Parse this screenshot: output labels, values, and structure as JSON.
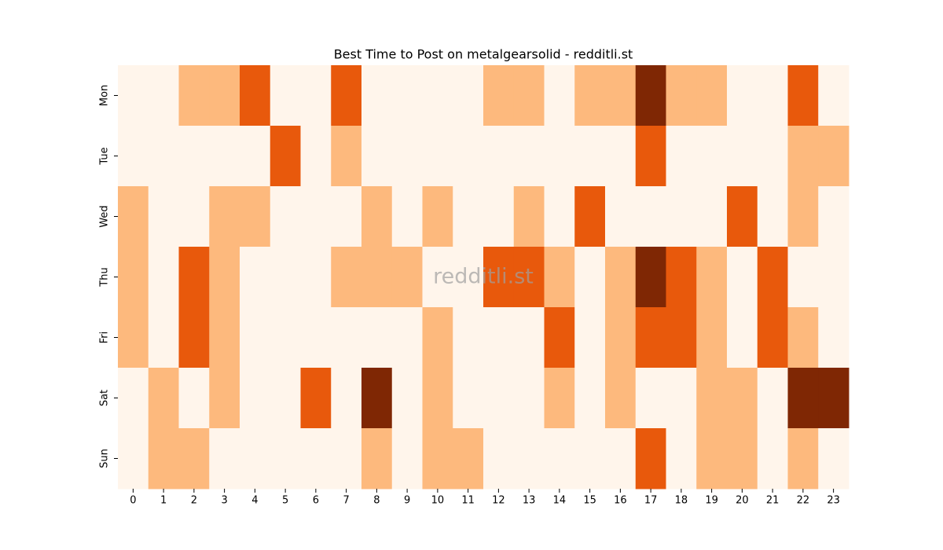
{
  "chart_data": {
    "type": "heatmap",
    "title": "Best Time to Post on metalgearsolid - redditli.st",
    "watermark": "redditli.st",
    "x_categories": [
      0,
      1,
      2,
      3,
      4,
      5,
      6,
      7,
      8,
      9,
      10,
      11,
      12,
      13,
      14,
      15,
      16,
      17,
      18,
      19,
      20,
      21,
      22,
      23
    ],
    "y_categories": [
      "Mon",
      "Tue",
      "Wed",
      "Thu",
      "Fri",
      "Sat",
      "Sun"
    ],
    "values": [
      [
        0,
        0,
        1,
        1,
        2,
        0,
        0,
        2,
        0,
        0,
        0,
        0,
        1,
        1,
        0,
        1,
        1,
        3,
        1,
        1,
        0,
        0,
        2,
        0
      ],
      [
        0,
        0,
        0,
        0,
        0,
        2,
        0,
        1,
        0,
        0,
        0,
        0,
        0,
        0,
        0,
        0,
        0,
        2,
        0,
        0,
        0,
        0,
        1,
        1
      ],
      [
        1,
        0,
        0,
        1,
        1,
        0,
        0,
        0,
        1,
        0,
        1,
        0,
        0,
        1,
        0,
        2,
        0,
        0,
        0,
        0,
        2,
        0,
        1,
        0
      ],
      [
        1,
        0,
        2,
        1,
        0,
        0,
        0,
        1,
        1,
        1,
        0,
        0,
        2,
        2,
        1,
        0,
        1,
        3,
        2,
        1,
        0,
        2,
        0,
        0
      ],
      [
        1,
        0,
        2,
        1,
        0,
        0,
        0,
        0,
        0,
        0,
        1,
        0,
        0,
        0,
        2,
        0,
        1,
        2,
        2,
        1,
        0,
        2,
        1,
        0
      ],
      [
        0,
        1,
        0,
        1,
        0,
        0,
        2,
        0,
        3,
        0,
        1,
        0,
        0,
        0,
        1,
        0,
        1,
        0,
        0,
        1,
        1,
        0,
        3,
        3
      ],
      [
        0,
        1,
        1,
        0,
        0,
        0,
        0,
        0,
        1,
        0,
        1,
        1,
        0,
        0,
        0,
        0,
        0,
        2,
        0,
        1,
        1,
        0,
        1,
        0
      ]
    ],
    "colormap": [
      "#fff5eb",
      "#fdb97d",
      "#e8590c",
      "#7f2704"
    ]
  }
}
